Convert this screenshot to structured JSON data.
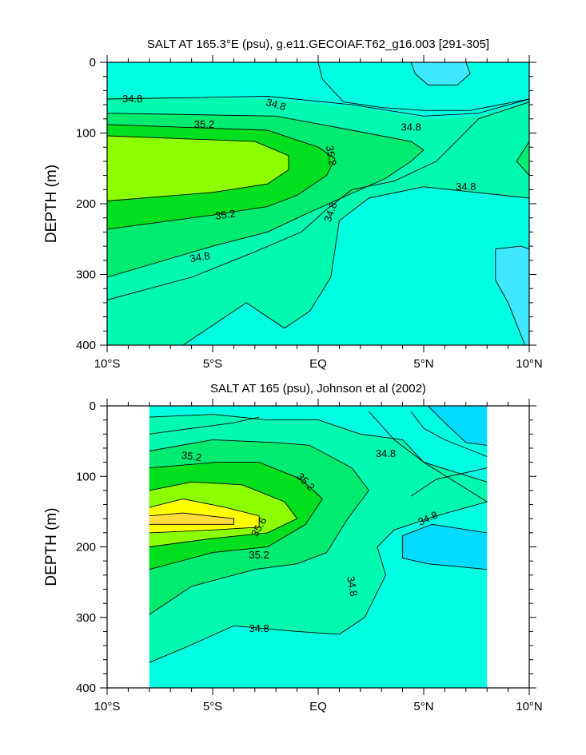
{
  "chart_data": [
    {
      "type": "contour",
      "title": "SALT AT 165.3°E (psu), g.e11.GECOIAF.T62_g16.003 [291-305]",
      "xlabel": "",
      "ylabel": "DEPTH (m)",
      "xlim": [
        -10,
        10
      ],
      "ylim": [
        400,
        0
      ],
      "x_tick_labels": [
        "10°S",
        "5°S",
        "EQ",
        "5°N",
        "10°N"
      ],
      "y_tick_labels": [
        "0",
        "100",
        "200",
        "300",
        "400"
      ],
      "contour_labels": [
        "34.8",
        "34.8",
        "34.8",
        "34.8",
        "34.8",
        "35.2",
        "35.2",
        "35.2"
      ],
      "contour_levels": [
        34.6,
        34.8,
        35.0,
        35.2,
        35.4
      ],
      "colors": {
        "lowest": "#3ee8ff",
        "low": "#00ffe1",
        "mid_low": "#00fab0",
        "mid": "#00eb70",
        "mid_high": "#00e01e",
        "high": "#8cff00"
      }
    },
    {
      "type": "contour",
      "title": "SALT AT 165 (psu), Johnson et al (2002)",
      "xlabel": "",
      "ylabel": "DEPTH (m)",
      "xlim": [
        -10,
        10
      ],
      "ylim": [
        400,
        0
      ],
      "data_x_range": [
        -8,
        8
      ],
      "x_tick_labels": [
        "10°S",
        "5°S",
        "EQ",
        "5°N",
        "10°N"
      ],
      "y_tick_labels": [
        "0",
        "100",
        "200",
        "300",
        "400"
      ],
      "contour_labels": [
        "35.2",
        "35.2",
        "35.6",
        "35.2",
        "34.8",
        "34.8",
        "34.8",
        "34.8"
      ],
      "contour_levels": [
        34.4,
        34.6,
        34.8,
        35.0,
        35.2,
        35.4,
        35.6
      ],
      "colors": {
        "lowest": "#00dcff",
        "low": "#00ffe1",
        "mid_low": "#00fab0",
        "mid": "#00eb70",
        "mid_high": "#00e01e",
        "high": "#8cff00",
        "higher": "#ffff00",
        "highest": "#ffdc3c"
      }
    }
  ]
}
